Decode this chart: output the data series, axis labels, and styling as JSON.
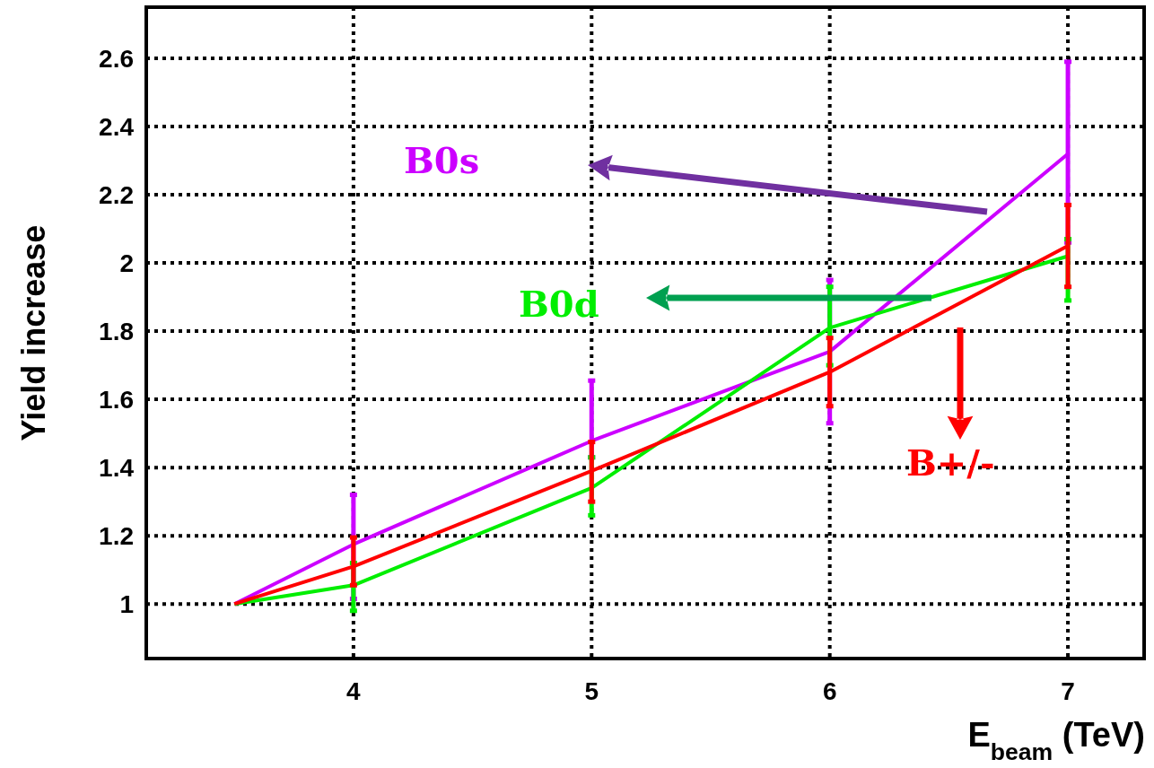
{
  "chart_data": {
    "type": "line",
    "xlabel": "E$_{beam}$ (TeV)",
    "ylabel": "Yield increase",
    "xlim": [
      3.13,
      7.32
    ],
    "xticks": [
      4,
      5,
      6,
      7
    ],
    "ylim": [
      0.84,
      2.75
    ],
    "yticks": [
      1,
      1.2,
      1.4,
      1.6,
      1.8,
      2,
      2.2,
      2.4,
      2.6
    ],
    "x": [
      3.5,
      4,
      5,
      6,
      7
    ],
    "grid": true,
    "legend": false,
    "marker": "none",
    "line_style": "solid",
    "series": [
      {
        "name": "B0s",
        "color": "#cc00ff",
        "values": [
          1,
          1.175,
          1.478,
          1.74,
          2.32
        ],
        "errors": [
          null,
          [
            1.015,
            1.32
          ],
          [
            1.43,
            1.655
          ],
          [
            1.53,
            1.95
          ],
          [
            2.06,
            2.59
          ]
        ]
      },
      {
        "name": "B0d",
        "color": "#00ee00",
        "values": [
          1,
          1.055,
          1.34,
          1.81,
          2.02
        ],
        "errors": [
          null,
          [
            0.98,
            1.12
          ],
          [
            1.26,
            1.43
          ],
          [
            1.7,
            1.93
          ],
          [
            1.89,
            2.07
          ]
        ]
      },
      {
        "name": "B+/-",
        "color": "#ff0000",
        "values": [
          1,
          1.11,
          1.39,
          1.68,
          2.05
        ],
        "errors": [
          null,
          [
            1.055,
            1.195
          ],
          [
            1.3,
            1.475
          ],
          [
            1.58,
            1.78
          ],
          [
            1.93,
            2.17
          ]
        ]
      }
    ]
  }
}
